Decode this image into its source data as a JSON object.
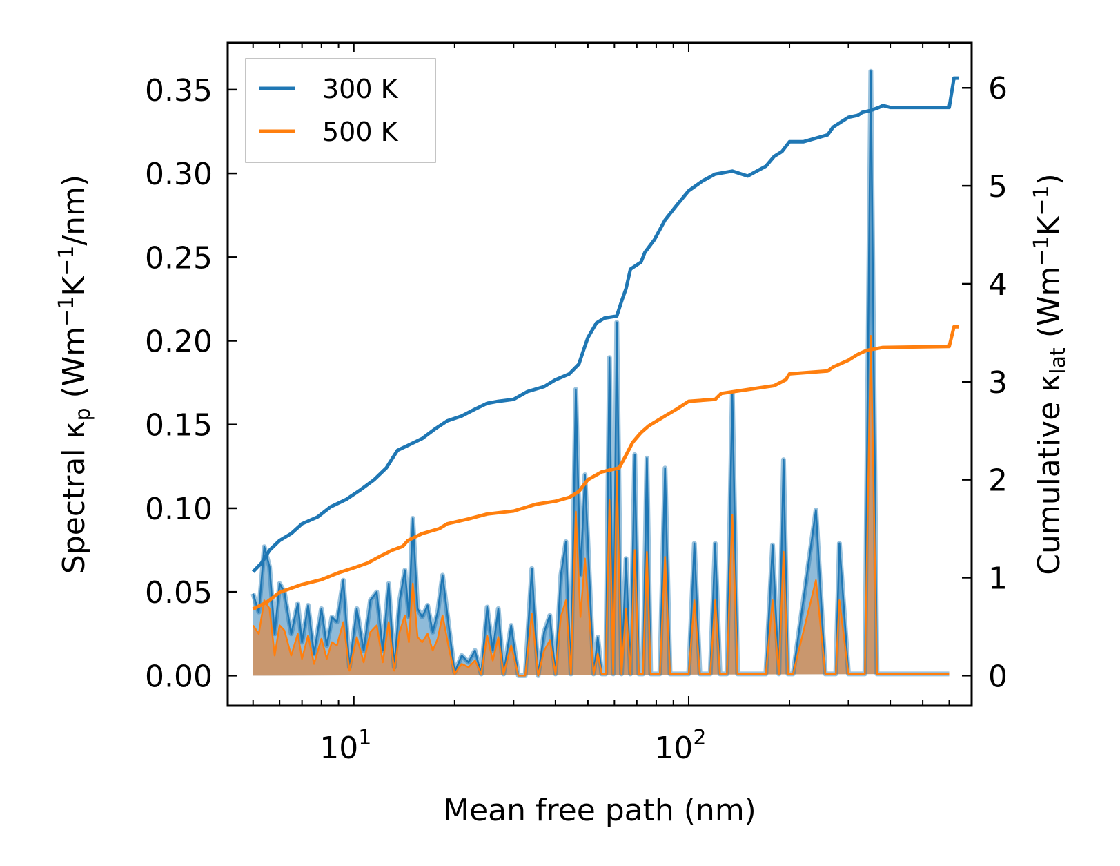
{
  "chart_data": {
    "type": "line",
    "xscale": "log",
    "xlabel": "Mean free path (nm)",
    "xlim": [
      4.2,
      700
    ],
    "x_ticks": [
      {
        "value": 10,
        "base": "10",
        "exp": "1"
      },
      {
        "value": 100,
        "base": "10",
        "exp": "2"
      }
    ],
    "ylabel_left": {
      "prefix": "Spectral κ",
      "sub": "p",
      "unit_open": " (Wm",
      "sup1": "−1",
      "mid": "K",
      "sup2": "−1",
      "unit_close": "/nm)"
    },
    "ylabel_right": {
      "prefix": "Cumulative κ",
      "sub": "lat",
      "unit_open": " (Wm",
      "sup1": "−1",
      "mid": "K",
      "sup2": "−1",
      "unit_close": ")"
    },
    "ylim_left": [
      -0.018,
      0.378
    ],
    "ylim_right": [
      -0.308,
      6.46
    ],
    "left_ticks": [
      "0.00",
      "0.05",
      "0.10",
      "0.15",
      "0.20",
      "0.25",
      "0.30",
      "0.35"
    ],
    "right_ticks": [
      "0",
      "1",
      "2",
      "3",
      "4",
      "5",
      "6"
    ],
    "colors": {
      "series_300": "#1f77b4",
      "series_500": "#ff7f0e",
      "fill_300": "#1f77b4",
      "fill_500": "#d4915a"
    },
    "legend": {
      "location": "upper left",
      "entries": [
        "300 K",
        "500 K"
      ]
    },
    "spectral_x": [
      5,
      5.2,
      5.4,
      5.6,
      5.8,
      6.0,
      6.2,
      6.5,
      6.8,
      7.0,
      7.3,
      7.6,
      8.0,
      8.3,
      8.6,
      8.9,
      9.3,
      9.7,
      10.2,
      10.7,
      11.2,
      11.7,
      12.2,
      12.7,
      13.2,
      13.7,
      14.2,
      14.6,
      15.0,
      15.5,
      16.0,
      16.6,
      17.2,
      17.8,
      18.4,
      19.2,
      20.0,
      21.0,
      22.0,
      23.0,
      24.0,
      25.0,
      26.0,
      27.0,
      28.0,
      29.5,
      31.0,
      32.5,
      34.0,
      35.5,
      37.0,
      38.5,
      40.0,
      41.5,
      43.0,
      44.5,
      46.0,
      47.5,
      49.0,
      50.5,
      52.0,
      53.5,
      55.0,
      56.5,
      58.0,
      59.5,
      61.0,
      63.0,
      65.0,
      67.0,
      69.0,
      71.0,
      73.0,
      75.0,
      77.0,
      79.5,
      82.0,
      85.0,
      88.0,
      91.0,
      94.0,
      97.0,
      100.0,
      104.0,
      108.0,
      112.0,
      116.0,
      120.0,
      124.0,
      130.0,
      135.0,
      140.0,
      145.0,
      150.0,
      170.0,
      178.0,
      186.0,
      192.0,
      198.0,
      205.0,
      240.0,
      256.0,
      265.0,
      275.0,
      282.0,
      300.0,
      310.0,
      318.0,
      326.0,
      336.0,
      350.0,
      365.0,
      378.0,
      395.0,
      600.0,
      612.0,
      620.0,
      630.0,
      640.0
    ],
    "series": [
      {
        "name": "300 K",
        "spectral": [
          0.049,
          0.038,
          0.077,
          0.065,
          0.025,
          0.055,
          0.05,
          0.025,
          0.043,
          0.02,
          0.042,
          0.013,
          0.04,
          0.018,
          0.035,
          0.032,
          0.057,
          0.005,
          0.04,
          0.015,
          0.045,
          0.05,
          0.015,
          0.055,
          0.005,
          0.045,
          0.063,
          0.035,
          0.094,
          0.04,
          0.035,
          0.042,
          0.026,
          0.038,
          0.06,
          0.03,
          0.002,
          0.012,
          0.008,
          0.015,
          0.001,
          0.041,
          0.015,
          0.04,
          0.001,
          0.03,
          0.0,
          0.0,
          0.064,
          0.0,
          0.026,
          0.036,
          0.001,
          0.06,
          0.08,
          0.001,
          0.171,
          0.06,
          0.12,
          0.06,
          0.001,
          0.023,
          0.001,
          0.001,
          0.19,
          0.001,
          0.211,
          0.001,
          0.07,
          0.001,
          0.132,
          0.001,
          0.001,
          0.13,
          0.001,
          0.001,
          0.001,
          0.124,
          0.001,
          0.001,
          0.001,
          0.001,
          0.001,
          0.079,
          0.001,
          0.001,
          0.001,
          0.079,
          0.001,
          0.001,
          0.169,
          0.001,
          0.001,
          0.001,
          0.001,
          0.078,
          0.001,
          0.129,
          0.001,
          0.001,
          0.099,
          0.001,
          0.001,
          0.001,
          0.079,
          0.001,
          0.001,
          0.001,
          0.001,
          0.001,
          0.361,
          0.001,
          0.001,
          0.001,
          0.001
        ],
        "cumulative_x": [
          5.0,
          5.3,
          5.6,
          6.0,
          6.5,
          7.0,
          7.8,
          8.5,
          9.5,
          10.5,
          11.5,
          12.5,
          13.5,
          14.5,
          16.0,
          17.5,
          19.0,
          21.0,
          23.0,
          25.0,
          27.0,
          30.0,
          33.0,
          37.0,
          40.0,
          44.0,
          47.0,
          48.5,
          50.0,
          53.0,
          56.0,
          61.0,
          63.0,
          65.0,
          67.0,
          72.0,
          74.0,
          79.0,
          85.0,
          92.0,
          100.0,
          110.0,
          120.0,
          135.0,
          150.0,
          170.0,
          180.0,
          190.0,
          200.0,
          220.0,
          260.0,
          270.0,
          300.0,
          320.0,
          330.0,
          350.0,
          370.0,
          380.0,
          400.0,
          600.0,
          620.0,
          640.0
        ],
        "cumulative": [
          1.06,
          1.15,
          1.28,
          1.38,
          1.45,
          1.55,
          1.62,
          1.72,
          1.8,
          1.9,
          2.0,
          2.12,
          2.3,
          2.35,
          2.42,
          2.52,
          2.6,
          2.65,
          2.72,
          2.78,
          2.8,
          2.82,
          2.9,
          2.95,
          3.02,
          3.08,
          3.18,
          3.32,
          3.45,
          3.6,
          3.65,
          3.67,
          3.82,
          3.95,
          4.15,
          4.22,
          4.32,
          4.45,
          4.65,
          4.8,
          4.95,
          5.05,
          5.12,
          5.15,
          5.1,
          5.2,
          5.3,
          5.35,
          5.45,
          5.45,
          5.52,
          5.6,
          5.7,
          5.72,
          5.75,
          5.77,
          5.8,
          5.82,
          5.8,
          5.8,
          6.1,
          6.1
        ]
      },
      {
        "name": "500 K",
        "spectral": [
          0.03,
          0.025,
          0.045,
          0.04,
          0.012,
          0.03,
          0.027,
          0.012,
          0.025,
          0.01,
          0.024,
          0.007,
          0.022,
          0.01,
          0.02,
          0.018,
          0.032,
          0.003,
          0.023,
          0.008,
          0.026,
          0.03,
          0.008,
          0.032,
          0.003,
          0.026,
          0.036,
          0.02,
          0.055,
          0.023,
          0.02,
          0.025,
          0.015,
          0.022,
          0.036,
          0.017,
          0.001,
          0.007,
          0.005,
          0.009,
          0.001,
          0.024,
          0.009,
          0.023,
          0.001,
          0.018,
          0.0,
          0.0,
          0.037,
          0.0,
          0.015,
          0.021,
          0.001,
          0.035,
          0.045,
          0.001,
          0.098,
          0.035,
          0.07,
          0.035,
          0.001,
          0.013,
          0.001,
          0.001,
          0.105,
          0.001,
          0.122,
          0.001,
          0.04,
          0.001,
          0.075,
          0.001,
          0.001,
          0.074,
          0.001,
          0.001,
          0.001,
          0.071,
          0.001,
          0.001,
          0.001,
          0.001,
          0.001,
          0.045,
          0.001,
          0.001,
          0.001,
          0.045,
          0.001,
          0.001,
          0.096,
          0.001,
          0.001,
          0.001,
          0.001,
          0.045,
          0.001,
          0.074,
          0.001,
          0.001,
          0.057,
          0.001,
          0.001,
          0.001,
          0.045,
          0.001,
          0.001,
          0.001,
          0.001,
          0.001,
          0.203,
          0.001,
          0.001,
          0.001,
          0.001
        ],
        "cumulative_x": [
          5.0,
          5.5,
          6.0,
          7.0,
          8.0,
          9.0,
          10.0,
          11.0,
          12.0,
          13.0,
          14.0,
          14.5,
          16.0,
          18.0,
          19.0,
          22.0,
          25.0,
          30.0,
          35.0,
          40.0,
          44.0,
          47.0,
          50.0,
          55.0,
          62.0,
          65.0,
          68.0,
          72.0,
          76.0,
          85.0,
          92.0,
          100.0,
          120.0,
          125.0,
          150.0,
          180.0,
          195.0,
          200.0,
          260.0,
          270.0,
          300.0,
          320.0,
          340.0,
          380.0,
          600.0,
          620.0,
          640.0
        ],
        "cumulative": [
          0.68,
          0.75,
          0.85,
          0.93,
          0.98,
          1.05,
          1.1,
          1.15,
          1.22,
          1.28,
          1.32,
          1.38,
          1.45,
          1.5,
          1.55,
          1.6,
          1.65,
          1.68,
          1.75,
          1.78,
          1.82,
          1.88,
          2.0,
          2.08,
          2.12,
          2.25,
          2.38,
          2.48,
          2.55,
          2.65,
          2.72,
          2.8,
          2.82,
          2.88,
          2.92,
          2.96,
          3.02,
          3.08,
          3.11,
          3.15,
          3.22,
          3.28,
          3.32,
          3.35,
          3.36,
          3.56,
          3.56
        ]
      }
    ]
  }
}
